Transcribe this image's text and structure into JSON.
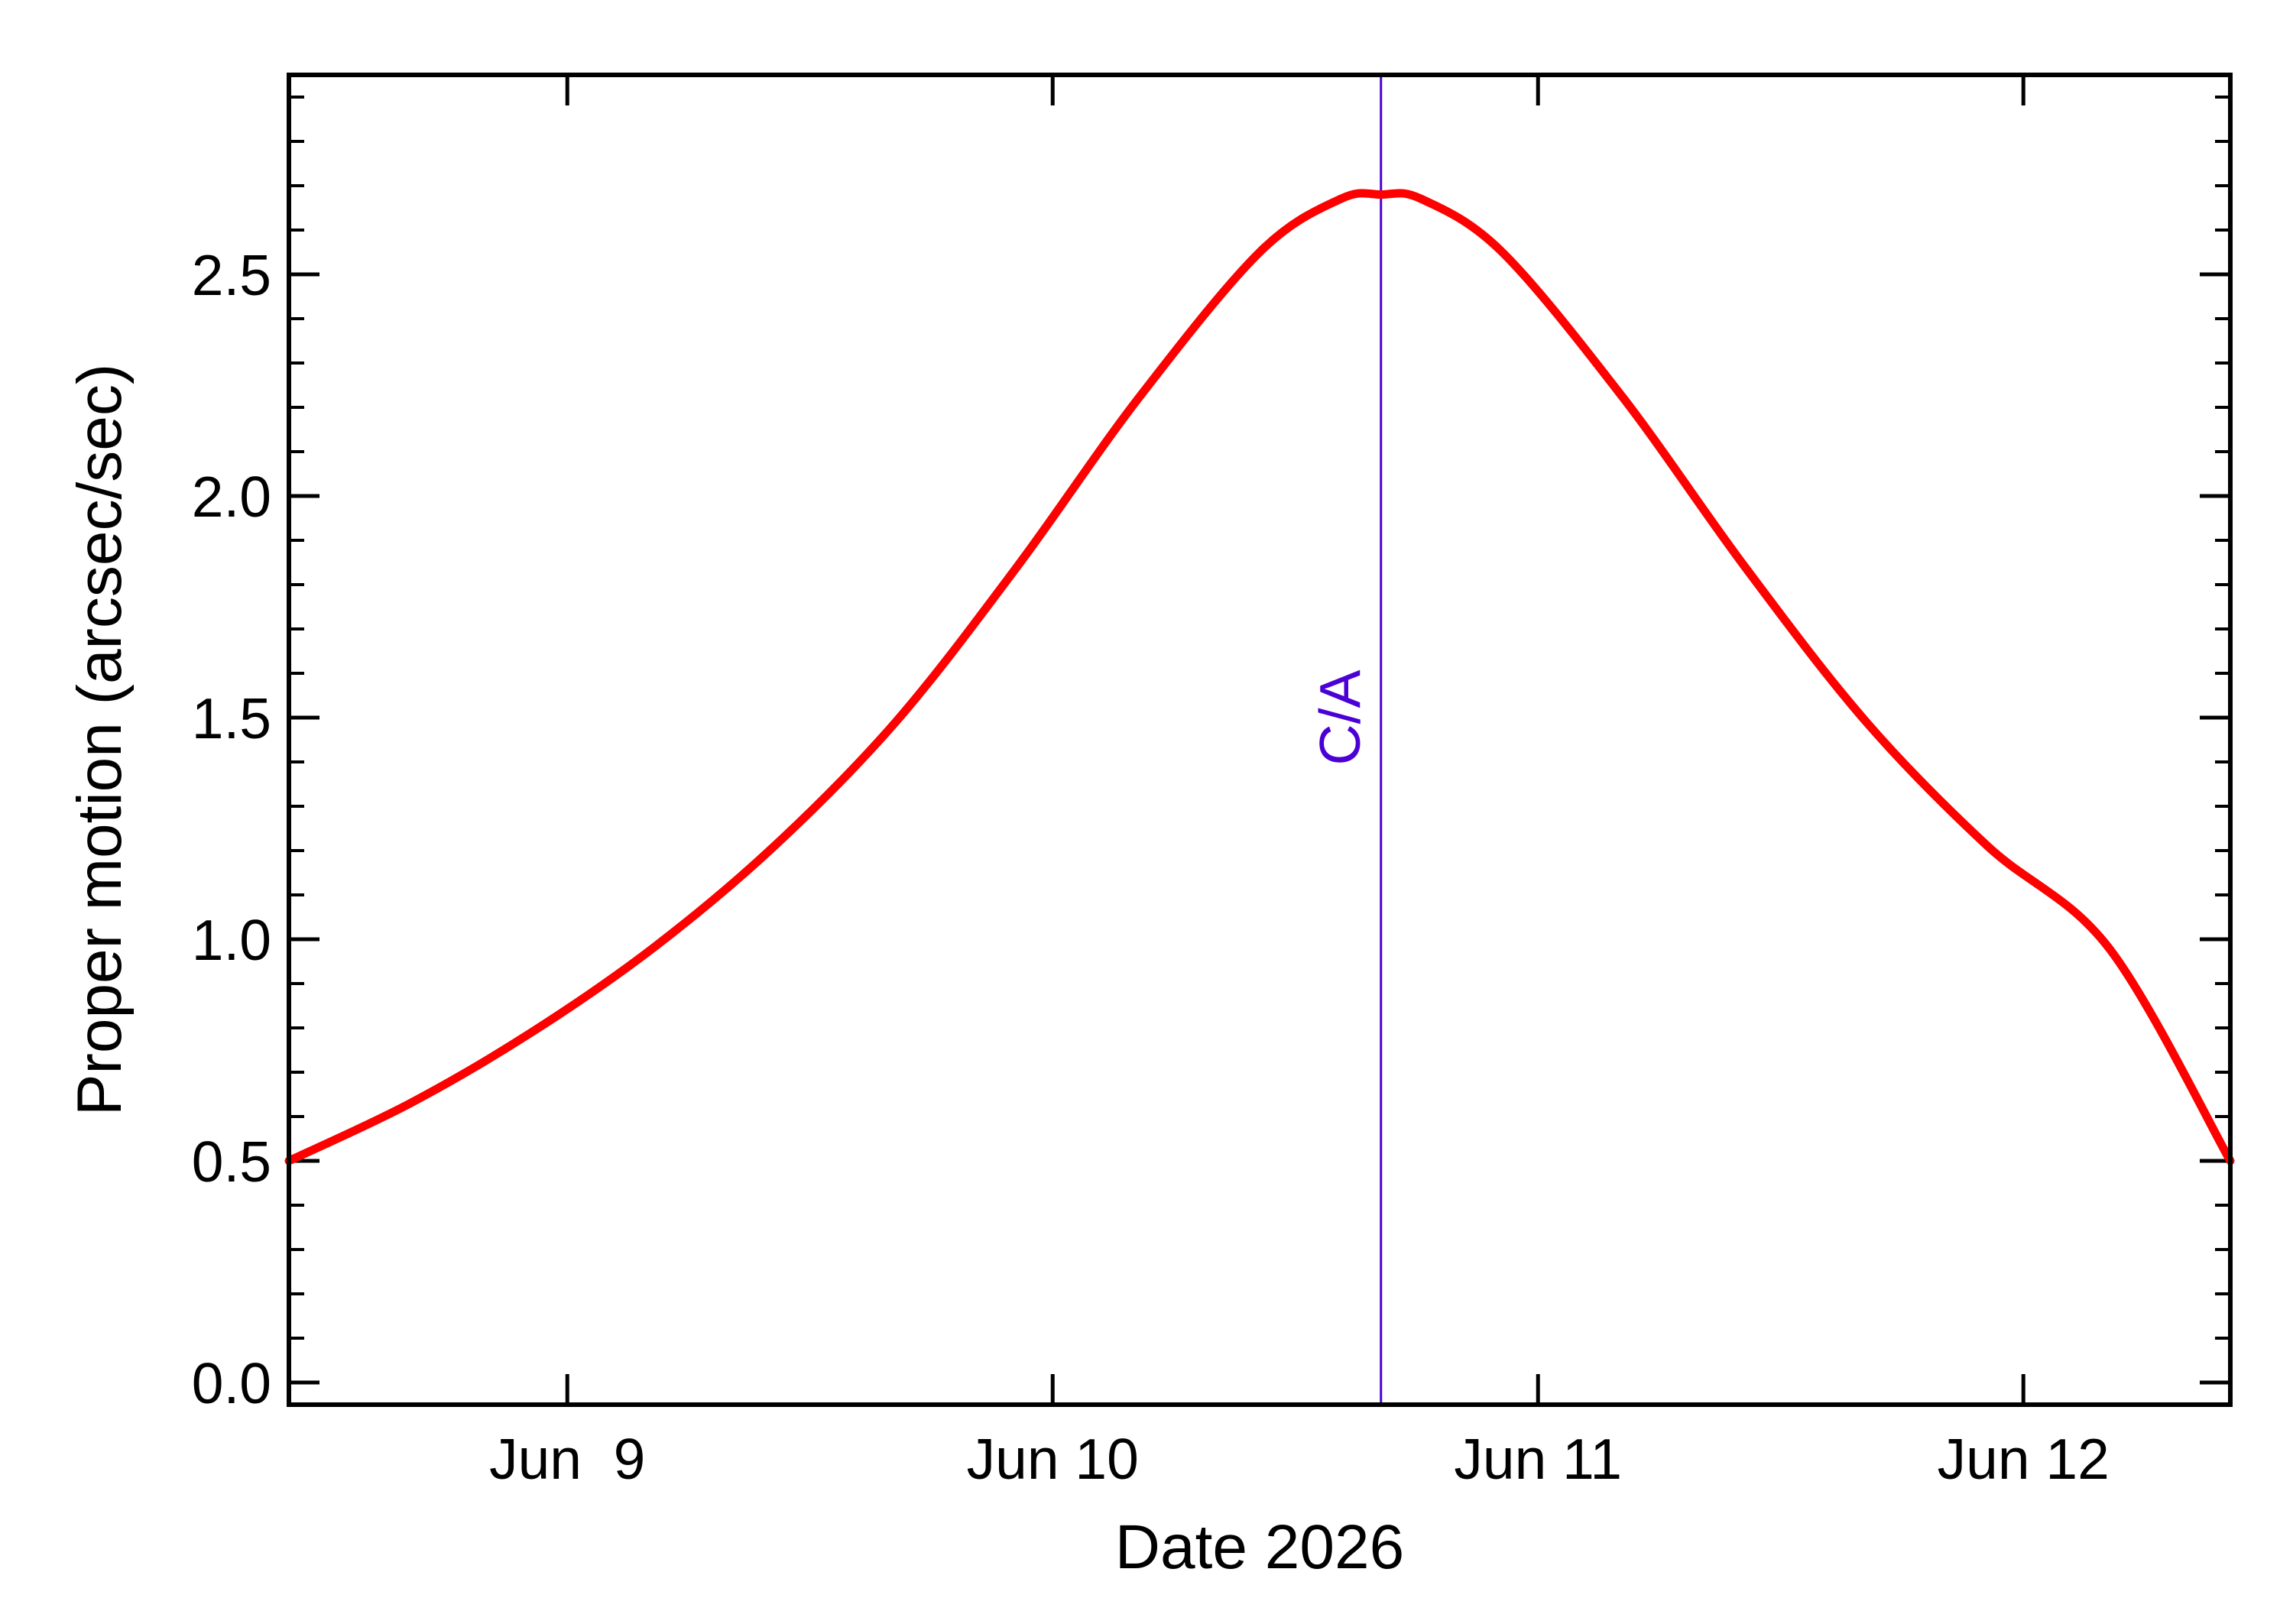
{
  "chart_data": {
    "type": "line",
    "title": "",
    "xlabel": "Date 2026",
    "ylabel": "Proper motion (arcsec/sec)",
    "x_axis": {
      "type": "date",
      "range": [
        "2026-06-08 10:14",
        "2026-06-12 10:14"
      ],
      "ticks": [
        {
          "date": "2026-06-09 00:00",
          "label": "Jun  9"
        },
        {
          "date": "2026-06-10 00:00",
          "label": "Jun 10"
        },
        {
          "date": "2026-06-11 00:00",
          "label": "Jun 11"
        },
        {
          "date": "2026-06-12 00:00",
          "label": "Jun 12"
        }
      ]
    },
    "y_axis": {
      "range": [
        -0.05,
        2.95
      ],
      "ticks": [
        {
          "value": 0.0,
          "label": "0.0"
        },
        {
          "value": 0.5,
          "label": "0.5"
        },
        {
          "value": 1.0,
          "label": "1.0"
        },
        {
          "value": 1.5,
          "label": "1.5"
        },
        {
          "value": 2.0,
          "label": "2.0"
        },
        {
          "value": 2.5,
          "label": "2.5"
        }
      ]
    },
    "grid": false,
    "series": [
      {
        "color": "#ff0000",
        "points": [
          [
            "2026-06-08 10:14",
            0.5
          ],
          [
            "2026-06-08 16:14",
            0.63
          ],
          [
            "2026-06-08 22:14",
            0.79
          ],
          [
            "2026-06-09 04:14",
            0.98
          ],
          [
            "2026-06-09 10:14",
            1.21
          ],
          [
            "2026-06-09 16:14",
            1.49
          ],
          [
            "2026-06-09 22:14",
            1.84
          ],
          [
            "2026-06-10 04:14",
            2.22
          ],
          [
            "2026-06-10 10:14",
            2.55
          ],
          [
            "2026-06-10 14:14",
            2.67
          ],
          [
            "2026-06-10 16:14",
            2.68
          ],
          [
            "2026-06-10 18:14",
            2.67
          ],
          [
            "2026-06-10 22:14",
            2.55
          ],
          [
            "2026-06-11 04:14",
            2.22
          ],
          [
            "2026-06-11 10:14",
            1.84
          ],
          [
            "2026-06-11 16:14",
            1.49
          ],
          [
            "2026-06-11 22:14",
            1.21
          ],
          [
            "2026-06-12 04:14",
            0.98
          ],
          [
            "2026-06-12 10:14",
            0.79
          ],
          [
            "2026-06-12 10:14",
            0.5
          ]
        ]
      }
    ],
    "annotations": [
      {
        "type": "vertical_line",
        "date": "2026-06-10 16:14",
        "label": "C/A",
        "color": "#4b00d6"
      }
    ]
  }
}
